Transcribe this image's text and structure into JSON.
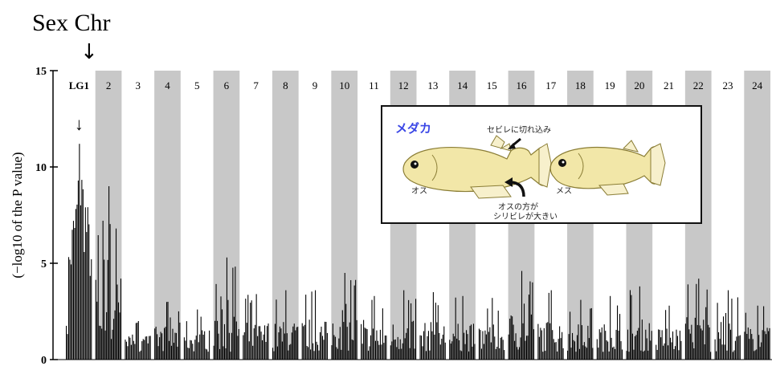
{
  "heading": "Sex Chr",
  "heading_arrow": "↓",
  "inset": {
    "title": "メダカ",
    "fin_notch_label": "セビレに切れ込み",
    "male_label": "オス",
    "female_label": "メス",
    "anal_fin_note_line1": "オスの方が",
    "anal_fin_note_line2": "シリビレが大きい",
    "colors": {
      "title": "#3b47e6",
      "fish_body": "#f2e7a8",
      "fish_outline": "#8a7d35",
      "fin": "#f7f0cc"
    }
  },
  "chart_data": {
    "type": "bar",
    "description_kind": "manhattan",
    "ylabel": "(−log10 of the P value)",
    "ylim": [
      0,
      15
    ],
    "yticks": [
      0,
      5,
      10,
      15
    ],
    "linkage_groups": [
      "LG1",
      "2",
      "3",
      "4",
      "5",
      "6",
      "7",
      "8",
      "9",
      "10",
      "11",
      "12",
      "13",
      "14",
      "15",
      "16",
      "17",
      "18",
      "19",
      "20",
      "21",
      "22",
      "23",
      "24"
    ],
    "shaded_groups": [
      "2",
      "4",
      "6",
      "8",
      "10",
      "12",
      "14",
      "16",
      "18",
      "20",
      "22",
      "24"
    ],
    "series": [
      {
        "values": [
          11.2,
          9.0,
          2.0,
          3.0,
          2.6,
          5.3,
          3.4,
          3.6,
          3.6,
          4.5,
          3.3,
          3.6,
          3.5,
          3.3,
          3.2,
          4.6,
          3.6,
          3.1,
          3.3,
          3.8,
          2.8,
          4.2,
          3.6,
          2.8
        ]
      }
    ],
    "annotations": [
      {
        "group": "LG1",
        "text": "↓",
        "note": "sex-linked peak"
      }
    ],
    "grid": false,
    "legend": "none",
    "colors": {
      "bars": "#000000",
      "shade": "#c8c8c8"
    }
  }
}
